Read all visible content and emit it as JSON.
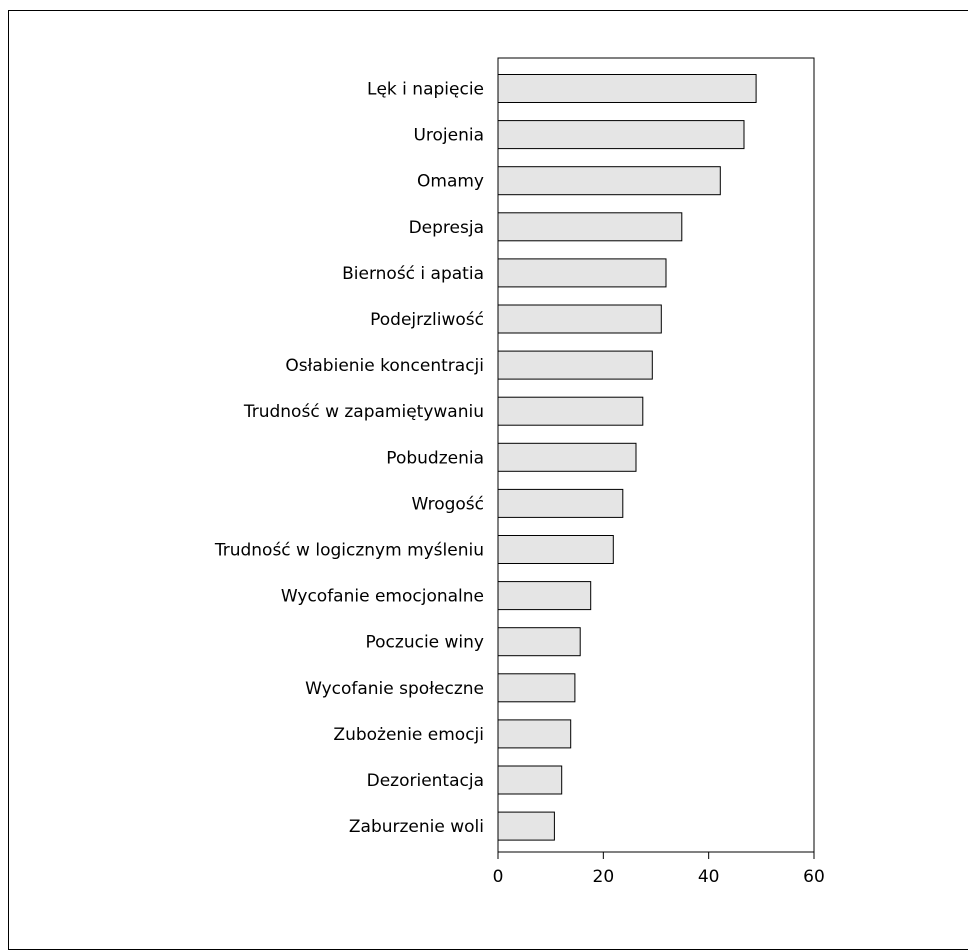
{
  "chart_data": {
    "type": "bar",
    "orientation": "horizontal",
    "categories": [
      "Lęk i napięcie",
      "Urojenia",
      "Omamy",
      "Depresja",
      "Bierność i apatia",
      "Podejrzliwość",
      "Osłabienie koncentracji",
      "Trudność w zapamiętywaniu",
      "Pobudzenia",
      "Wrogość",
      "Trudność w logicznym myśleniu",
      "Wycofanie emocjonalne",
      "Poczucie winy",
      "Wycofanie społeczne",
      "Zubożenie emocji",
      "Dezorientacja",
      "Zaburzenie woli"
    ],
    "values": [
      49,
      46.7,
      42.2,
      34.9,
      31.9,
      31,
      29.3,
      27.5,
      26.2,
      23.7,
      21.9,
      17.6,
      15.6,
      14.6,
      13.8,
      12.1,
      10.7
    ],
    "xlim": [
      0,
      60
    ],
    "xticks": [
      0,
      20,
      40,
      60
    ],
    "title": "",
    "xlabel": "",
    "ylabel": "",
    "grid": false,
    "colors": {
      "bar_fill": "#e5e5e5",
      "bar_stroke": "#000000",
      "axis": "#000000"
    }
  }
}
